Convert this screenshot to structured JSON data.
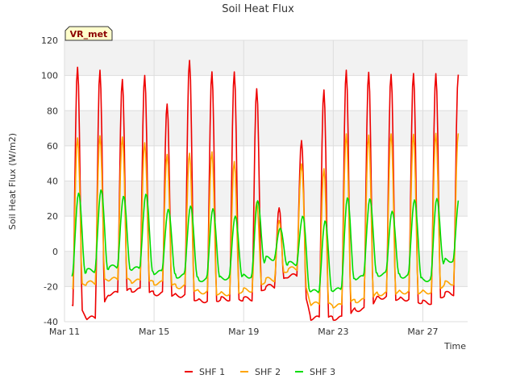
{
  "chart_data": {
    "type": "line",
    "title": "Soil Heat Flux",
    "xlabel": "Time",
    "ylabel": "Soil Heat Flux (W/m2)",
    "ylim": [
      -40,
      120
    ],
    "yticks": [
      -40,
      -20,
      0,
      20,
      40,
      60,
      80,
      100,
      120
    ],
    "xlim_days": [
      0,
      18
    ],
    "xticks": [
      {
        "day": 0,
        "label": "Mar 11"
      },
      {
        "day": 4,
        "label": "Mar 15"
      },
      {
        "day": 8,
        "label": "Mar 19"
      },
      {
        "day": 12,
        "label": "Mar 23"
      },
      {
        "day": 16,
        "label": "Mar 27"
      }
    ],
    "badge": "VR_met",
    "grid": true,
    "legend_position": "bottom-center",
    "x_start_day": 0.3,
    "x_end_day": 17.6,
    "series": [
      {
        "name": "SHF 1",
        "color": "#ee0000",
        "daily": [
          {
            "day": 0,
            "peak": 105,
            "trough": -30
          },
          {
            "day": 1,
            "peak": 104,
            "trough": -38
          },
          {
            "day": 2,
            "peak": 99,
            "trough": -24
          },
          {
            "day": 3,
            "peak": 101,
            "trough": -22
          },
          {
            "day": 4,
            "peak": 84,
            "trough": -24
          },
          {
            "day": 5,
            "peak": 108,
            "trough": -25
          },
          {
            "day": 6,
            "peak": 101,
            "trough": -28
          },
          {
            "day": 7,
            "peak": 101,
            "trough": -27
          },
          {
            "day": 8,
            "peak": 92,
            "trough": -27
          },
          {
            "day": 9,
            "peak": 25,
            "trough": -20
          },
          {
            "day": 10,
            "peak": 64,
            "trough": -14
          },
          {
            "day": 11,
            "peak": 93,
            "trough": -38
          },
          {
            "day": 12,
            "peak": 104,
            "trough": -38
          },
          {
            "day": 13,
            "peak": 102,
            "trough": -33
          },
          {
            "day": 14,
            "peak": 100,
            "trough": -26
          },
          {
            "day": 15,
            "peak": 100,
            "trough": -27
          },
          {
            "day": 16,
            "peak": 100,
            "trough": -29
          },
          {
            "day": 17,
            "peak": 100,
            "trough": -24
          }
        ]
      },
      {
        "name": "SHF 2",
        "color": "#ffa500",
        "daily": [
          {
            "day": 0,
            "peak": 64,
            "trough": -20
          },
          {
            "day": 1,
            "peak": 66,
            "trough": -18
          },
          {
            "day": 2,
            "peak": 66,
            "trough": -16
          },
          {
            "day": 3,
            "peak": 63,
            "trough": -17
          },
          {
            "day": 4,
            "peak": 56,
            "trough": -18
          },
          {
            "day": 5,
            "peak": 56,
            "trough": -20
          },
          {
            "day": 6,
            "peak": 56,
            "trough": -23
          },
          {
            "day": 7,
            "peak": 50,
            "trough": -24
          },
          {
            "day": 8,
            "peak": 27,
            "trough": -22
          },
          {
            "day": 9,
            "peak": 17,
            "trough": -16
          },
          {
            "day": 10,
            "peak": 50,
            "trough": -10
          },
          {
            "day": 11,
            "peak": 48,
            "trough": -30
          },
          {
            "day": 12,
            "peak": 68,
            "trough": -31
          },
          {
            "day": 13,
            "peak": 67,
            "trough": -28
          },
          {
            "day": 14,
            "peak": 67,
            "trough": -24
          },
          {
            "day": 15,
            "peak": 66,
            "trough": -23
          },
          {
            "day": 16,
            "peak": 66,
            "trough": -23
          },
          {
            "day": 17,
            "peak": 66,
            "trough": -18
          }
        ]
      },
      {
        "name": "SHF 3",
        "color": "#00dd00",
        "daily": [
          {
            "day": 0,
            "peak": 32,
            "trough": -13
          },
          {
            "day": 1,
            "peak": 34,
            "trough": -11
          },
          {
            "day": 2,
            "peak": 31,
            "trough": -9
          },
          {
            "day": 3,
            "peak": 33,
            "trough": -10
          },
          {
            "day": 4,
            "peak": 25,
            "trough": -12
          },
          {
            "day": 5,
            "peak": 27,
            "trough": -14
          },
          {
            "day": 6,
            "peak": 25,
            "trough": -16
          },
          {
            "day": 7,
            "peak": 20,
            "trough": -15
          },
          {
            "day": 8,
            "peak": 28,
            "trough": -14
          },
          {
            "day": 9,
            "peak": 12,
            "trough": -4
          },
          {
            "day": 10,
            "peak": 19,
            "trough": -7
          },
          {
            "day": 11,
            "peak": 17,
            "trough": -23
          },
          {
            "day": 12,
            "peak": 31,
            "trough": -22
          },
          {
            "day": 13,
            "peak": 31,
            "trough": -15
          },
          {
            "day": 14,
            "peak": 24,
            "trough": -13
          },
          {
            "day": 15,
            "peak": 30,
            "trough": -14
          },
          {
            "day": 16,
            "peak": 30,
            "trough": -16
          },
          {
            "day": 17,
            "peak": 30,
            "trough": -5
          }
        ]
      }
    ]
  }
}
